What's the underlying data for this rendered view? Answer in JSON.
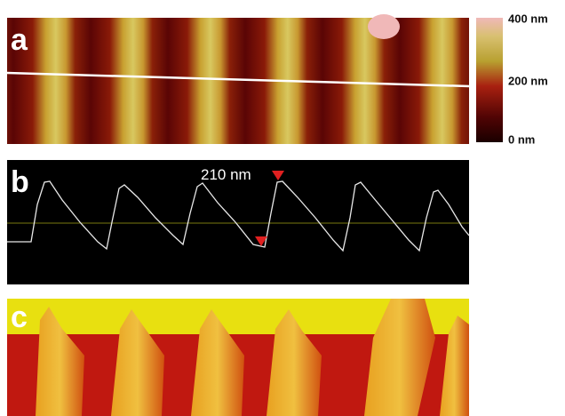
{
  "panels": [
    {
      "label": "a"
    },
    {
      "label": "b",
      "annotation": "210 nm"
    },
    {
      "label": "c"
    }
  ],
  "colorbar": {
    "labels": [
      "400 nm",
      "200 nm",
      "0 nm"
    ]
  }
}
